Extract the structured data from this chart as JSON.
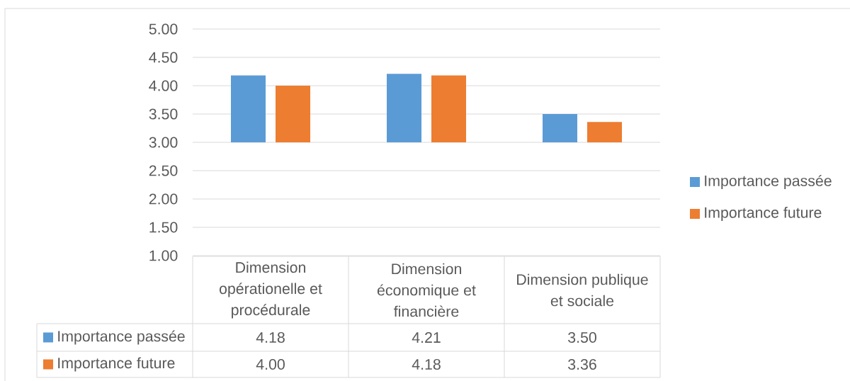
{
  "chart_data": {
    "type": "bar",
    "categories": [
      "Dimension opérationelle et procédurale",
      "Dimension économique et financière",
      "Dimension publique et sociale"
    ],
    "series": [
      {
        "name": "Importance passée",
        "color": "#5b9bd5",
        "base": [
          3,
          3,
          3
        ],
        "values": [
          1.18,
          1.21,
          0.5
        ],
        "value_labels": [
          "4.18",
          "4.21",
          "3.50"
        ]
      },
      {
        "name": "Importance future",
        "color": "#ed7d31",
        "base": [
          3,
          3,
          3
        ],
        "values": [
          1.0,
          1.18,
          0.36
        ],
        "value_labels": [
          "4.00",
          "4.18",
          "3.36"
        ]
      }
    ],
    "ylim": [
      1,
      5
    ],
    "yticks": [
      {
        "value": 1,
        "label": "1.00"
      },
      {
        "value": 1.5,
        "label": "1.50"
      },
      {
        "value": 2,
        "label": "2.00"
      },
      {
        "value": 2.5,
        "label": "2.50"
      },
      {
        "value": 3,
        "label": "3.00"
      },
      {
        "value": 3.5,
        "label": "3.50"
      },
      {
        "value": 4,
        "label": "4.00"
      },
      {
        "value": 4.5,
        "label": "4.50"
      },
      {
        "value": 5,
        "label": "5.00"
      }
    ],
    "grid": "y",
    "legend": "right"
  }
}
